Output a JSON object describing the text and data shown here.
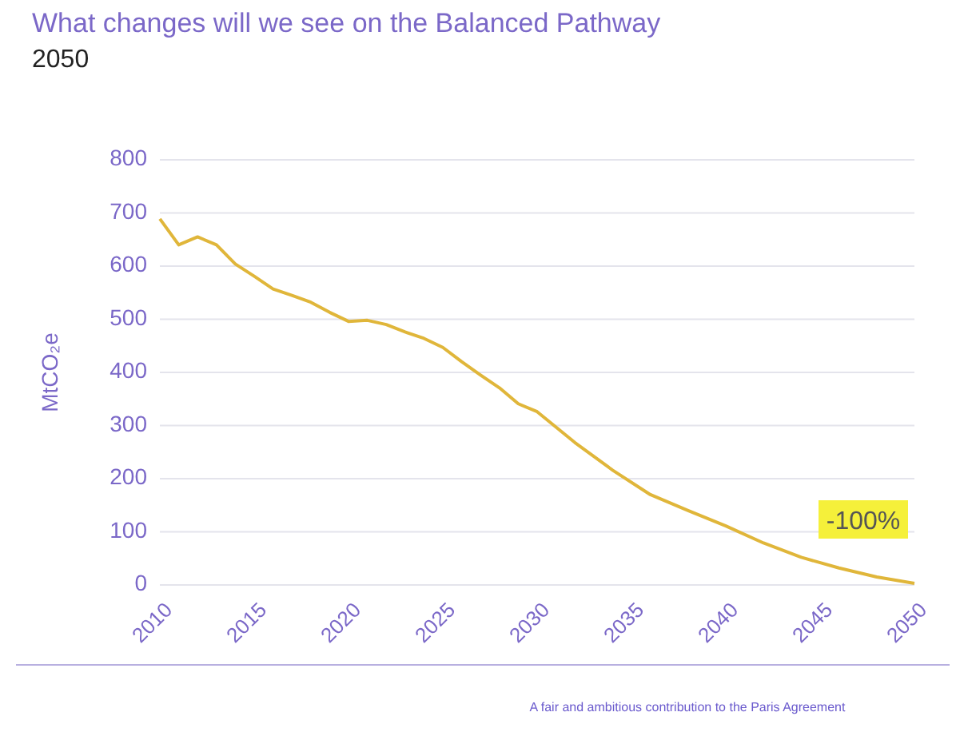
{
  "chart_data": {
    "type": "line",
    "title": "What changes will we see on the Balanced Pathway",
    "subtitle": "2050",
    "ylabel": "MtCO₂e",
    "annotations": [
      {
        "text": "-100%",
        "x": 2050,
        "y": 3
      },
      "A fair and ambitious contribution to the Paris Agreement"
    ],
    "x": [
      2010,
      2011,
      2012,
      2013,
      2014,
      2015,
      2016,
      2017,
      2018,
      2019,
      2020,
      2021,
      2022,
      2023,
      2024,
      2025,
      2026,
      2027,
      2028,
      2029,
      2030,
      2032,
      2034,
      2036,
      2038,
      2040,
      2042,
      2044,
      2046,
      2048,
      2050
    ],
    "series": [
      {
        "color": "#e0b63a",
        "values": [
          689,
          640,
          655,
          640,
          604,
          581,
          557,
          545,
          532,
          513,
          496,
          498,
          490,
          476,
          464,
          447,
          420,
          395,
          371,
          341,
          326,
          268,
          216,
          170,
          140,
          111,
          79,
          52,
          32,
          15,
          3
        ]
      }
    ],
    "xlim": [
      2010,
      2050
    ],
    "xticks": [
      2010,
      2015,
      2020,
      2025,
      2030,
      2035,
      2040,
      2045,
      2050
    ],
    "ylim": [
      0,
      800
    ],
    "yticks": [
      0,
      100,
      200,
      300,
      400,
      500,
      600,
      700,
      800
    ],
    "grid": "y",
    "marker": "none",
    "line_style": "solid"
  }
}
